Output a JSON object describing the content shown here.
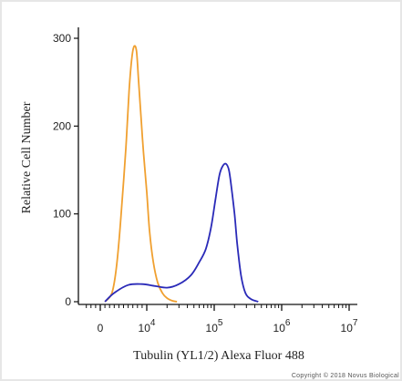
{
  "chart_data": {
    "type": "line",
    "xlabel": "Tubulin (YL1/2) Alexa Fluor 488",
    "ylabel": "Relative Cell Number",
    "x_scale": "biexponential",
    "ylim": [
      0,
      300
    ],
    "y_ticks": [
      {
        "value": 0,
        "label": "0"
      },
      {
        "value": 100,
        "label": "100"
      },
      {
        "value": 200,
        "label": "200"
      },
      {
        "value": 300,
        "label": "300"
      }
    ],
    "x_ticks": [
      {
        "value": 0,
        "base": "0",
        "exp": ""
      },
      {
        "value": 10000,
        "base": "10",
        "exp": "4"
      },
      {
        "value": 100000,
        "base": "10",
        "exp": "5"
      },
      {
        "value": 1000000,
        "base": "10",
        "exp": "6"
      },
      {
        "value": 10000000,
        "base": "10",
        "exp": "7"
      }
    ],
    "grid": false,
    "legend": "none",
    "series": [
      {
        "color": "#f0a030",
        "x": [
          1000,
          2500,
          3500,
          4500,
          5500,
          6200,
          6800,
          7300,
          7800,
          8200,
          8700,
          9300,
          10000,
          11000,
          12500,
          14500,
          17000,
          20000,
          24000,
          28000
        ],
        "y": [
          0,
          10,
          40,
          100,
          175,
          240,
          278,
          291,
          285,
          255,
          215,
          170,
          125,
          80,
          45,
          22,
          10,
          4,
          1,
          0
        ]
      },
      {
        "color": "#2a2ab8",
        "x": [
          1000,
          3000,
          6000,
          9000,
          13000,
          20000,
          30000,
          45000,
          60000,
          75000,
          90000,
          105000,
          120000,
          135000,
          150000,
          165000,
          180000,
          200000,
          220000,
          250000,
          290000,
          350000,
          450000
        ],
        "y": [
          0,
          10,
          19,
          20,
          18,
          16,
          20,
          30,
          45,
          60,
          85,
          118,
          145,
          155,
          157,
          150,
          130,
          100,
          65,
          30,
          10,
          3,
          0
        ]
      }
    ]
  },
  "footer": {
    "copyright": "Copyright © 2018 Novus Biological"
  }
}
